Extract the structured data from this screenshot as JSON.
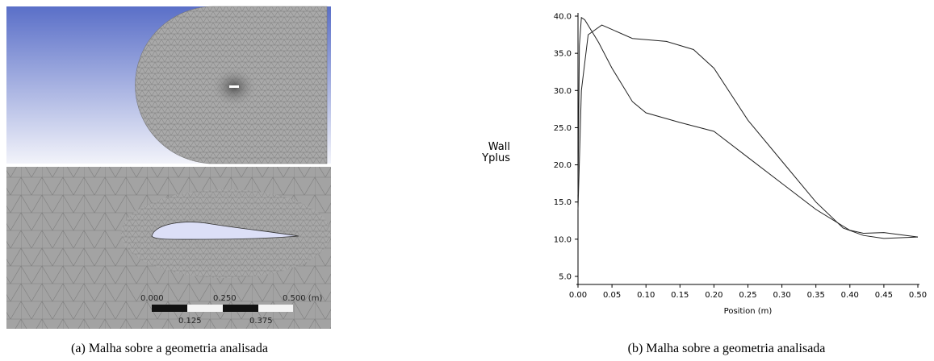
{
  "figure_a": {
    "scale_labels": [
      "0.000",
      "0.250",
      "0.500 (m)",
      "0.125",
      "0.375"
    ]
  },
  "captions": [
    "(a) Malha sobre a geometria analisada",
    "(b) Malha sobre a geometria analisada"
  ],
  "chart_data": {
    "type": "line",
    "xlabel": "Position (m)",
    "ylabel": "Wall Yplus",
    "xlim": [
      0,
      0.5
    ],
    "ylim": [
      5,
      40
    ],
    "xticks": [
      {
        "value": 0,
        "label": "0.00"
      },
      {
        "value": 0.05,
        "label": "0.05"
      },
      {
        "value": 0.1,
        "label": "0.10"
      },
      {
        "value": 0.15,
        "label": "0.15"
      },
      {
        "value": 0.2,
        "label": "0.20"
      },
      {
        "value": 0.25,
        "label": "0.25"
      },
      {
        "value": 0.3,
        "label": "0.30"
      },
      {
        "value": 0.35,
        "label": "0.35"
      },
      {
        "value": 0.4,
        "label": "0.40"
      },
      {
        "value": 0.45,
        "label": "0.45"
      },
      {
        "value": 0.5,
        "label": "0.50"
      }
    ],
    "yticks": [
      {
        "value": 5,
        "label": "5.0"
      },
      {
        "value": 10,
        "label": "10.0"
      },
      {
        "value": 15,
        "label": "15.0"
      },
      {
        "value": 20,
        "label": "20.0"
      },
      {
        "value": 25,
        "label": "25.0"
      },
      {
        "value": 30,
        "label": "30.0"
      },
      {
        "value": 35,
        "label": "35.0"
      },
      {
        "value": 40,
        "label": "40.0"
      }
    ],
    "series": [
      {
        "color": "#222222",
        "x": [
          0,
          0.002,
          0.005,
          0.01,
          0.03,
          0.05,
          0.08,
          0.1,
          0.15,
          0.2,
          0.25,
          0.3,
          0.35,
          0.4,
          0.42,
          0.45,
          0.5
        ],
        "values": [
          16,
          36,
          39.8,
          39.5,
          36.5,
          33,
          28.5,
          27,
          25.7,
          24.5,
          21,
          17.5,
          14,
          11.2,
          10.8,
          10.9,
          10.3
        ]
      },
      {
        "color": "#222222",
        "x": [
          0,
          0.005,
          0.015,
          0.035,
          0.05,
          0.08,
          0.13,
          0.17,
          0.2,
          0.25,
          0.3,
          0.35,
          0.39,
          0.42,
          0.45,
          0.5
        ],
        "values": [
          14,
          30,
          37.5,
          38.8,
          38.2,
          37,
          36.6,
          35.5,
          33,
          26,
          20.5,
          15,
          11.5,
          10.5,
          10.1,
          10.3
        ]
      }
    ]
  }
}
